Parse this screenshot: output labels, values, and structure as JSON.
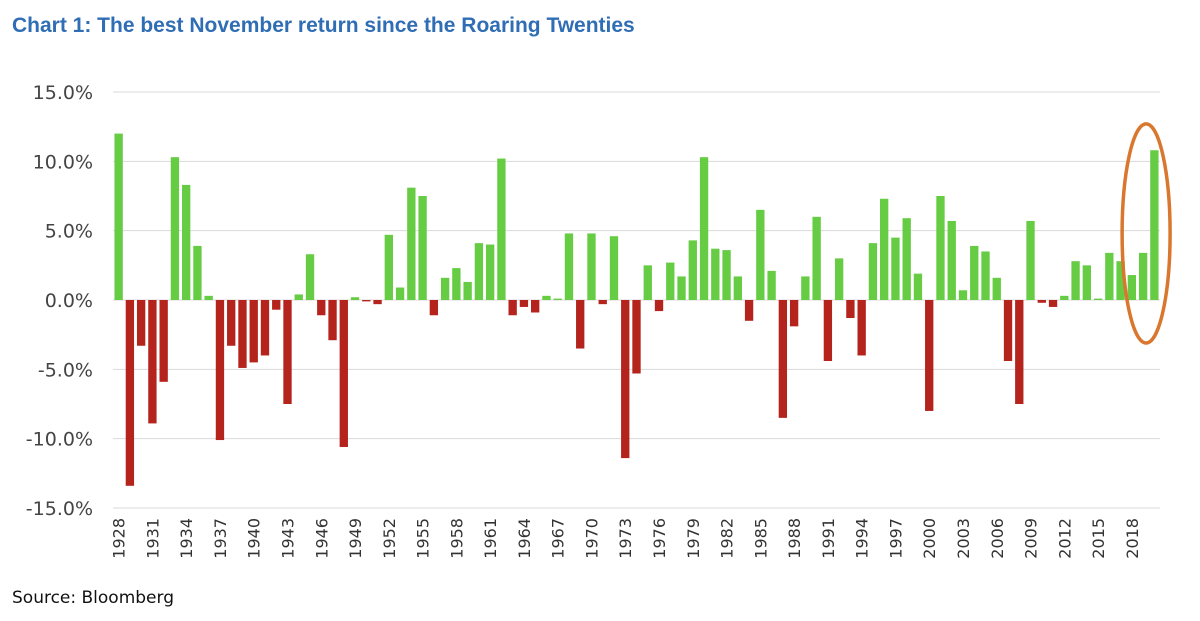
{
  "title": "Chart 1:  The best November return since the Roaring Twenties",
  "source": "Source: Bloomberg",
  "colors": {
    "positive": "#66cc44",
    "negative": "#b5231d",
    "highlight": "#d9772e",
    "title": "#2f6db5"
  },
  "chart_data": {
    "type": "bar",
    "title": "The best November return since the Roaring Twenties",
    "xlabel": "",
    "ylabel": "",
    "ylim": [
      -15,
      15
    ],
    "yticks": [
      15,
      10,
      5,
      0,
      -5,
      -10,
      -15
    ],
    "ytick_labels": [
      "15.0%",
      "10.0%",
      "5.0%",
      "0.0%",
      "-5.0%",
      "-10.0%",
      "-15.0%"
    ],
    "xtick_labels": [
      "1928",
      "1931",
      "1934",
      "1937",
      "1940",
      "1943",
      "1946",
      "1949",
      "1952",
      "1955",
      "1958",
      "1961",
      "1964",
      "1967",
      "1970",
      "1973",
      "1976",
      "1979",
      "1982",
      "1985",
      "1988",
      "1991",
      "1994",
      "1997",
      "2000",
      "2003",
      "2006",
      "2009",
      "2012",
      "2015",
      "2018"
    ],
    "categories": [
      1928,
      1929,
      1930,
      1931,
      1932,
      1933,
      1934,
      1935,
      1936,
      1937,
      1938,
      1939,
      1940,
      1941,
      1942,
      1943,
      1944,
      1945,
      1946,
      1947,
      1948,
      1949,
      1950,
      1951,
      1952,
      1953,
      1954,
      1955,
      1956,
      1957,
      1958,
      1959,
      1960,
      1961,
      1962,
      1963,
      1964,
      1965,
      1966,
      1967,
      1968,
      1969,
      1970,
      1971,
      1972,
      1973,
      1974,
      1975,
      1976,
      1977,
      1978,
      1979,
      1980,
      1981,
      1982,
      1983,
      1984,
      1985,
      1986,
      1987,
      1988,
      1989,
      1990,
      1991,
      1992,
      1993,
      1994,
      1995,
      1996,
      1997,
      1998,
      1999,
      2000,
      2001,
      2002,
      2003,
      2004,
      2005,
      2006,
      2007,
      2008,
      2009,
      2010,
      2011,
      2012,
      2013,
      2014,
      2015,
      2016,
      2017,
      2018,
      2019,
      2020
    ],
    "values": [
      12.0,
      -13.4,
      -3.3,
      -8.9,
      -5.9,
      10.3,
      8.3,
      3.9,
      0.3,
      -10.1,
      -3.3,
      -4.9,
      -4.5,
      -4.0,
      -0.7,
      -7.5,
      0.4,
      3.3,
      -1.1,
      -2.9,
      -10.6,
      0.2,
      -0.1,
      -0.3,
      4.7,
      0.9,
      8.1,
      7.5,
      -1.1,
      1.6,
      2.3,
      1.3,
      4.1,
      4.0,
      10.2,
      -1.1,
      -0.5,
      -0.9,
      0.3,
      0.1,
      4.8,
      -3.5,
      4.8,
      -0.3,
      4.6,
      -11.4,
      -5.3,
      2.5,
      -0.8,
      2.7,
      1.7,
      4.3,
      10.3,
      3.7,
      3.6,
      1.7,
      -1.5,
      6.5,
      2.1,
      -8.5,
      -1.9,
      1.7,
      6.0,
      -4.4,
      3.0,
      -1.3,
      -4.0,
      4.1,
      7.3,
      4.5,
      5.9,
      1.9,
      -8.0,
      7.5,
      5.7,
      0.7,
      3.9,
      3.5,
      1.6,
      -4.4,
      -7.5,
      5.7,
      -0.2,
      -0.5,
      0.3,
      2.8,
      2.5,
      0.1,
      3.4,
      2.8,
      1.8,
      3.4,
      10.8
    ],
    "highlight": {
      "label": "2020",
      "value": 10.8,
      "shape": "circle"
    }
  }
}
